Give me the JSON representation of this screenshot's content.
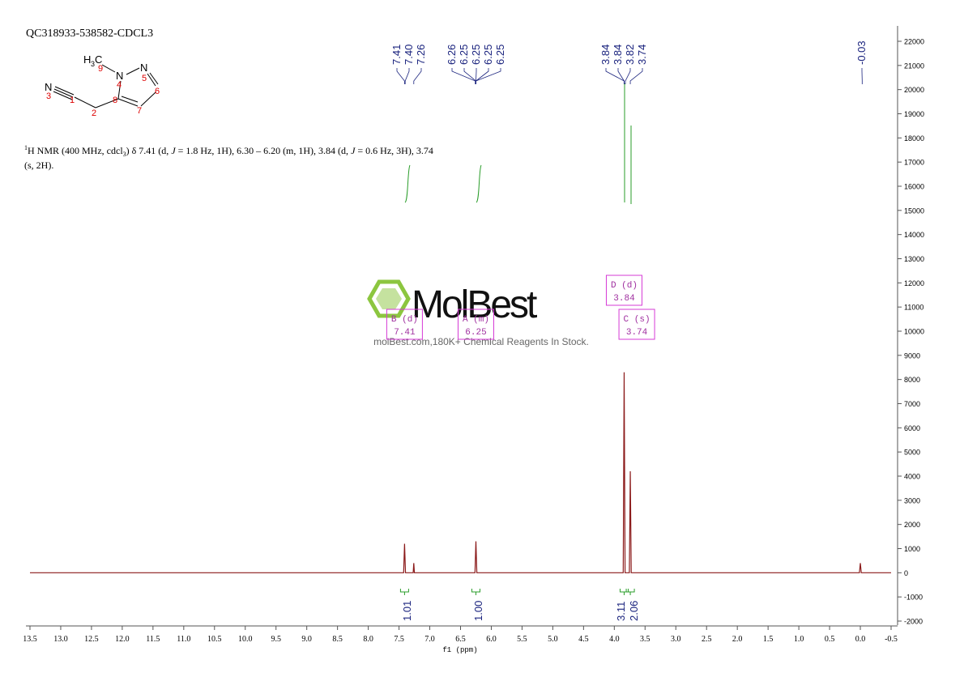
{
  "chart_data": {
    "type": "line",
    "title": "QC318933-538582-CDCL3",
    "description": [
      "1",
      "H NMR (400 MHz, cdcl",
      "3",
      ") δ 7.41 (d, ",
      "J",
      " = 1.8 Hz, 1H), 6.30 – 6.20 (m, 1H), 3.84 (d, ",
      "J",
      " = 0.6 Hz, 3H), 3.74",
      "(s, 2H)."
    ],
    "x_label": "f1 (ppm)",
    "x": [
      13.5,
      7.425,
      7.41,
      7.395,
      7.27,
      7.26,
      7.25,
      6.265,
      6.25,
      6.235,
      3.855,
      3.84,
      3.825,
      3.755,
      3.74,
      3.725,
      0.015,
      0.0,
      -0.015,
      -0.5
    ],
    "series": [
      {
        "color": "#8b1a1a",
        "values": [
          0,
          0,
          1200,
          0,
          0,
          400,
          0,
          0,
          1300,
          0,
          0,
          8300,
          0,
          0,
          4200,
          0,
          0,
          400,
          0,
          0
        ]
      }
    ],
    "xlim": [
      13.5,
      -0.5
    ],
    "xticks": [
      13.5,
      {
        "value": 13,
        "label": "13.0"
      },
      12.5,
      {
        "value": 12,
        "label": "12.0"
      },
      11.5,
      {
        "value": 11,
        "label": "11.0"
      },
      10.5,
      {
        "value": 10,
        "label": "10.0"
      },
      9.5,
      {
        "value": 9,
        "label": "9.0"
      },
      8.5,
      {
        "value": 8,
        "label": "8.0"
      },
      7.5,
      {
        "value": 7,
        "label": "7.0"
      },
      6.5,
      {
        "value": 6,
        "label": "6.0"
      },
      5.5,
      {
        "value": 5,
        "label": "5.0"
      },
      4.5,
      {
        "value": 4,
        "label": "4.0"
      },
      3.5,
      {
        "value": 3,
        "label": "3.0"
      },
      2.5,
      {
        "value": 2,
        "label": "2.0"
      },
      1.5,
      {
        "value": 1,
        "label": "1.0"
      },
      0.5,
      {
        "value": 0,
        "label": "0.0"
      },
      -0.5
    ],
    "ylim": [
      -2000,
      22000
    ],
    "yticks": [
      -2000,
      -1000,
      0,
      1000,
      2000,
      3000,
      4000,
      5000,
      6000,
      7000,
      8000,
      9000,
      10000,
      11000,
      12000,
      13000,
      14000,
      15000,
      16000,
      17000,
      18000,
      19000,
      20000,
      21000,
      22000
    ],
    "peak_labels": [
      7.41,
      {
        "value": 7.4,
        "label": "7.40"
      },
      7.26,
      6.26,
      6.25,
      6.25,
      6.25,
      6.25,
      3.84,
      3.84,
      3.82,
      3.74,
      -0.03
    ],
    "integrals": {
      "x": [
        7.41,
        6.25,
        3.84,
        3.74
      ],
      "values": [
        1.01,
        1,
        3.11,
        2.06
      ],
      "value_labels": [
        "1.01",
        "1.00",
        "3.11",
        "2.06"
      ]
    },
    "multiplets": [
      {
        "label": "B (d)",
        "shift": 7.41
      },
      {
        "label": "A (m)",
        "shift": 6.25
      },
      {
        "label": "D (d)",
        "shift": 3.84
      },
      {
        "label": "C (s)",
        "shift": 3.74
      }
    ],
    "structure": {
      "atoms": [
        "H",
        "3",
        "C",
        "N",
        "N",
        "N"
      ],
      "numbers": [
        "9",
        "4",
        "5",
        "6",
        "8",
        "7",
        "1",
        "2",
        "3"
      ]
    },
    "watermark": {
      "brand": "MolBest",
      "tagline": "molBest.com,180K+ Chemical Reagents In Stock."
    }
  }
}
